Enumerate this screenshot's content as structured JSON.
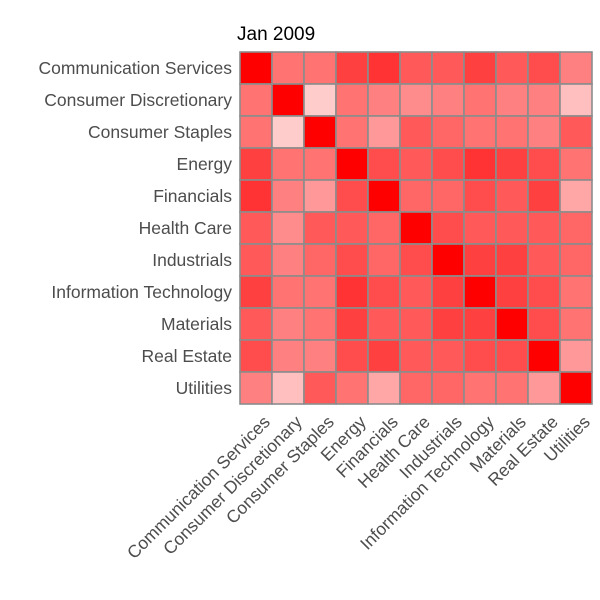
{
  "chart_data": {
    "type": "heatmap",
    "title": "Jan 2009",
    "xlabel": "",
    "ylabel": "",
    "legend": "none",
    "categories": [
      "Communication Services",
      "Consumer Discretionary",
      "Consumer Staples",
      "Energy",
      "Financials",
      "Health Care",
      "Industrials",
      "Information Technology",
      "Materials",
      "Real Estate",
      "Utilities"
    ],
    "value_range": [
      0,
      1
    ],
    "color_low": "#ffffff",
    "color_high": "#ff0000",
    "grid_color": "#8c8c8c",
    "values": [
      [
        1.0,
        0.55,
        0.55,
        0.75,
        0.8,
        0.65,
        0.65,
        0.75,
        0.65,
        0.7,
        0.5
      ],
      [
        0.55,
        1.0,
        0.2,
        0.55,
        0.5,
        0.45,
        0.5,
        0.55,
        0.5,
        0.5,
        0.25
      ],
      [
        0.55,
        0.2,
        1.0,
        0.55,
        0.4,
        0.65,
        0.6,
        0.55,
        0.55,
        0.5,
        0.65
      ],
      [
        0.75,
        0.55,
        0.55,
        1.0,
        0.7,
        0.65,
        0.7,
        0.8,
        0.75,
        0.7,
        0.55
      ],
      [
        0.8,
        0.5,
        0.4,
        0.7,
        1.0,
        0.6,
        0.6,
        0.7,
        0.65,
        0.75,
        0.35
      ],
      [
        0.65,
        0.45,
        0.65,
        0.65,
        0.6,
        1.0,
        0.7,
        0.65,
        0.65,
        0.65,
        0.6
      ],
      [
        0.65,
        0.5,
        0.6,
        0.7,
        0.6,
        0.7,
        1.0,
        0.75,
        0.75,
        0.65,
        0.6
      ],
      [
        0.75,
        0.55,
        0.55,
        0.8,
        0.7,
        0.65,
        0.75,
        1.0,
        0.75,
        0.7,
        0.55
      ],
      [
        0.65,
        0.5,
        0.55,
        0.75,
        0.65,
        0.65,
        0.75,
        0.75,
        1.0,
        0.7,
        0.55
      ],
      [
        0.7,
        0.5,
        0.5,
        0.7,
        0.75,
        0.65,
        0.65,
        0.7,
        0.7,
        1.0,
        0.4
      ],
      [
        0.5,
        0.25,
        0.65,
        0.55,
        0.35,
        0.6,
        0.6,
        0.55,
        0.55,
        0.4,
        1.0
      ]
    ]
  }
}
